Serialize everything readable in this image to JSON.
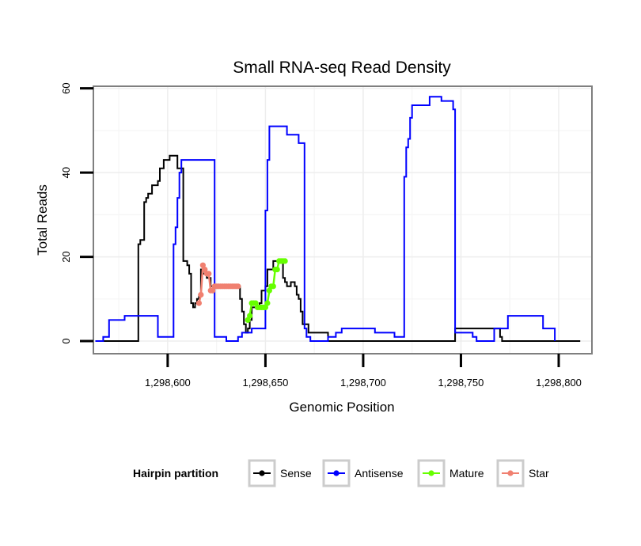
{
  "chart_data": {
    "type": "line",
    "title": "Small RNA-seq Read Density",
    "xlabel": "Genomic Position",
    "ylabel": "Total Reads",
    "xlim": [
      1298562,
      1298817
    ],
    "ylim": [
      -3,
      60.5
    ],
    "x_ticks": [
      1298600,
      1298650,
      1298700,
      1298750,
      1298800
    ],
    "x_tick_labels": [
      "1,298,600",
      "1,298,650",
      "1,298,700",
      "1,298,750",
      "1,298,800"
    ],
    "y_ticks": [
      0,
      20,
      40,
      60
    ],
    "y_tick_labels": [
      "0",
      "20",
      "40",
      "60"
    ],
    "grid": true,
    "legend": {
      "title": "Hairpin partition",
      "position": "bottom",
      "entries": [
        {
          "name": "Sense",
          "color": "#000000"
        },
        {
          "name": "Antisense",
          "color": "#0000ff"
        },
        {
          "name": "Mature",
          "color": "#66ff00"
        },
        {
          "name": "Star",
          "color": "#f08070"
        }
      ]
    },
    "series": [
      {
        "name": "Sense",
        "color": "#000000",
        "style": "step",
        "points": [
          [
            1298563,
            0
          ],
          [
            1298584,
            0
          ],
          [
            1298585,
            23
          ],
          [
            1298586,
            24
          ],
          [
            1298587,
            24
          ],
          [
            1298588,
            33
          ],
          [
            1298589,
            34
          ],
          [
            1298590,
            35
          ],
          [
            1298591,
            35
          ],
          [
            1298592,
            37
          ],
          [
            1298594,
            37
          ],
          [
            1298595,
            38
          ],
          [
            1298596,
            41
          ],
          [
            1298597,
            41
          ],
          [
            1298598,
            43
          ],
          [
            1298601,
            44
          ],
          [
            1298604,
            44
          ],
          [
            1298605,
            41
          ],
          [
            1298607,
            41
          ],
          [
            1298608,
            19
          ],
          [
            1298609,
            19
          ],
          [
            1298610,
            18
          ],
          [
            1298611,
            16
          ],
          [
            1298612,
            9
          ],
          [
            1298613,
            8
          ],
          [
            1298614,
            9
          ],
          [
            1298615,
            10
          ],
          [
            1298616,
            11
          ],
          [
            1298617,
            17
          ],
          [
            1298618,
            16
          ],
          [
            1298619,
            16
          ],
          [
            1298620,
            15
          ],
          [
            1298622,
            13
          ],
          [
            1298636,
            13
          ],
          [
            1298637,
            10
          ],
          [
            1298638,
            7
          ],
          [
            1298639,
            4
          ],
          [
            1298640,
            2
          ],
          [
            1298641,
            3
          ],
          [
            1298642,
            5
          ],
          [
            1298643,
            8
          ],
          [
            1298645,
            8
          ],
          [
            1298647,
            9
          ],
          [
            1298648,
            12
          ],
          [
            1298650,
            13
          ],
          [
            1298651,
            17
          ],
          [
            1298654,
            19
          ],
          [
            1298658,
            19
          ],
          [
            1298659,
            15
          ],
          [
            1298660,
            14
          ],
          [
            1298661,
            13
          ],
          [
            1298663,
            14
          ],
          [
            1298665,
            13
          ],
          [
            1298666,
            11
          ],
          [
            1298667,
            10
          ],
          [
            1298668,
            7
          ],
          [
            1298669,
            4
          ],
          [
            1298671,
            4
          ],
          [
            1298672,
            2
          ],
          [
            1298681,
            2
          ],
          [
            1298682,
            0
          ],
          [
            1298746,
            0
          ],
          [
            1298747,
            3
          ],
          [
            1298769,
            3
          ],
          [
            1298770,
            1
          ],
          [
            1298771,
            0
          ],
          [
            1298811,
            0
          ]
        ]
      },
      {
        "name": "Antisense",
        "color": "#0000ff",
        "style": "step",
        "points": [
          [
            1298563,
            0
          ],
          [
            1298566,
            0
          ],
          [
            1298567,
            1
          ],
          [
            1298569,
            1
          ],
          [
            1298570,
            5
          ],
          [
            1298577,
            5
          ],
          [
            1298578,
            6
          ],
          [
            1298594,
            6
          ],
          [
            1298595,
            1
          ],
          [
            1298602,
            1
          ],
          [
            1298603,
            23
          ],
          [
            1298604,
            27
          ],
          [
            1298605,
            34
          ],
          [
            1298606,
            40
          ],
          [
            1298607,
            43
          ],
          [
            1298623,
            43
          ],
          [
            1298624,
            1
          ],
          [
            1298629,
            1
          ],
          [
            1298630,
            0
          ],
          [
            1298635,
            0
          ],
          [
            1298636,
            1
          ],
          [
            1298638,
            2
          ],
          [
            1298641,
            2
          ],
          [
            1298643,
            3
          ],
          [
            1298649,
            3
          ],
          [
            1298650,
            31
          ],
          [
            1298651,
            43
          ],
          [
            1298652,
            51
          ],
          [
            1298660,
            51
          ],
          [
            1298661,
            49
          ],
          [
            1298666,
            49
          ],
          [
            1298667,
            47
          ],
          [
            1298669,
            47
          ],
          [
            1298670,
            3
          ],
          [
            1298671,
            1
          ],
          [
            1298673,
            0
          ],
          [
            1298681,
            0
          ],
          [
            1298682,
            1
          ],
          [
            1298685,
            1
          ],
          [
            1298686,
            2
          ],
          [
            1298688,
            2
          ],
          [
            1298689,
            3
          ],
          [
            1298705,
            3
          ],
          [
            1298706,
            2
          ],
          [
            1298715,
            2
          ],
          [
            1298716,
            1
          ],
          [
            1298720,
            1
          ],
          [
            1298721,
            39
          ],
          [
            1298722,
            46
          ],
          [
            1298723,
            48
          ],
          [
            1298724,
            53
          ],
          [
            1298725,
            56
          ],
          [
            1298733,
            56
          ],
          [
            1298734,
            58
          ],
          [
            1298739,
            58
          ],
          [
            1298740,
            57
          ],
          [
            1298745,
            57
          ],
          [
            1298746,
            55
          ],
          [
            1298747,
            2
          ],
          [
            1298755,
            2
          ],
          [
            1298756,
            1
          ],
          [
            1298758,
            0
          ],
          [
            1298766,
            0
          ],
          [
            1298767,
            3
          ],
          [
            1298773,
            3
          ],
          [
            1298774,
            6
          ],
          [
            1298791,
            6
          ],
          [
            1298792,
            3
          ],
          [
            1298797,
            3
          ],
          [
            1298798,
            0
          ]
        ]
      },
      {
        "name": "Mature",
        "color": "#66ff00",
        "style": "points",
        "points": [
          [
            1298641,
            5
          ],
          [
            1298642,
            6
          ],
          [
            1298643,
            9
          ],
          [
            1298644,
            9
          ],
          [
            1298645,
            9
          ],
          [
            1298646,
            8
          ],
          [
            1298647,
            8
          ],
          [
            1298648,
            8
          ],
          [
            1298649,
            8
          ],
          [
            1298650,
            8
          ],
          [
            1298651,
            9
          ],
          [
            1298652,
            12
          ],
          [
            1298653,
            13
          ],
          [
            1298654,
            13
          ],
          [
            1298655,
            17
          ],
          [
            1298656,
            17
          ],
          [
            1298657,
            19
          ],
          [
            1298658,
            19
          ],
          [
            1298659,
            19
          ],
          [
            1298660,
            19
          ]
        ]
      },
      {
        "name": "Star",
        "color": "#f08070",
        "style": "points",
        "points": [
          [
            1298616,
            9
          ],
          [
            1298617,
            11
          ],
          [
            1298618,
            18
          ],
          [
            1298619,
            17
          ],
          [
            1298620,
            16
          ],
          [
            1298621,
            16
          ],
          [
            1298622,
            12
          ],
          [
            1298623,
            12
          ],
          [
            1298624,
            13
          ],
          [
            1298625,
            13
          ],
          [
            1298626,
            13
          ],
          [
            1298627,
            13
          ],
          [
            1298628,
            13
          ],
          [
            1298629,
            13
          ],
          [
            1298630,
            13
          ],
          [
            1298631,
            13
          ],
          [
            1298632,
            13
          ],
          [
            1298633,
            13
          ],
          [
            1298634,
            13
          ],
          [
            1298635,
            13
          ],
          [
            1298636,
            13
          ]
        ]
      }
    ]
  }
}
